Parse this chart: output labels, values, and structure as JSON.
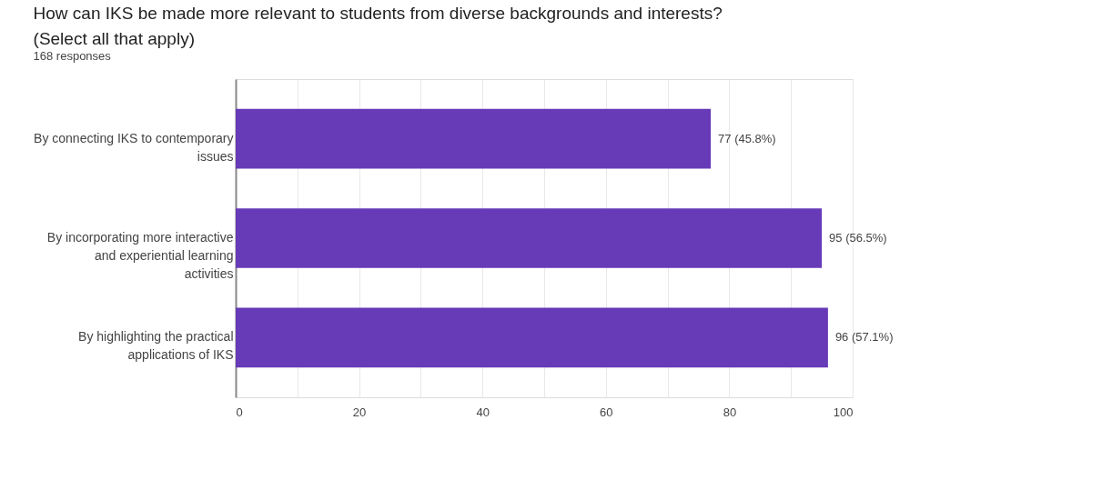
{
  "chart_data": {
    "type": "bar",
    "orientation": "horizontal",
    "title": "How can IKS be made more relevant to students from diverse backgrounds and interests? (Select all that apply)",
    "subtitle": "168 responses",
    "categories": [
      "By connecting IKS to contemporary issues",
      "By incorporating more interactive and experiential learning activities",
      "By highlighting the practical applications of IKS"
    ],
    "values": [
      77,
      95,
      96
    ],
    "value_labels": [
      "77 (45.8%)",
      "95 (56.5%)",
      "96 (57.1%)"
    ],
    "color": "#673ab7",
    "xlim": [
      0,
      100
    ],
    "xticks": [
      0,
      {
        "value": 10,
        "label": null
      },
      20,
      {
        "value": 30,
        "label": null
      },
      40,
      {
        "value": 50,
        "label": null
      },
      60,
      {
        "value": 70,
        "label": null
      },
      80,
      {
        "value": 90,
        "label": null
      },
      100
    ],
    "grid": "x"
  }
}
